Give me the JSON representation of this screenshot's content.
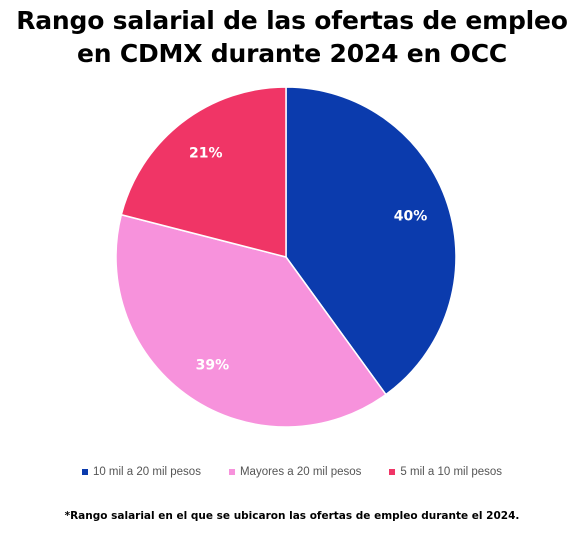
{
  "chart_data": {
    "type": "pie",
    "title_lines": [
      "Rango salarial de las ofertas de empleo",
      "en CDMX durante 2024 en OCC"
    ],
    "slices": [
      {
        "label": "10 mil a 20 mil pesos",
        "value": 40,
        "display": "40%",
        "color": "#0b3bad"
      },
      {
        "label": "Mayores a 20 mil pesos",
        "value": 39,
        "display": "39%",
        "color": "#f792dc"
      },
      {
        "label": "5 mil a 10 mil pesos",
        "value": 21,
        "display": "21%",
        "color": "#f03566"
      }
    ],
    "start": "12 o'clock, clockwise",
    "legend_position": "bottom"
  },
  "footnote": "*Rango salarial en el que se ubicaron las ofertas de empleo durante el 2024."
}
